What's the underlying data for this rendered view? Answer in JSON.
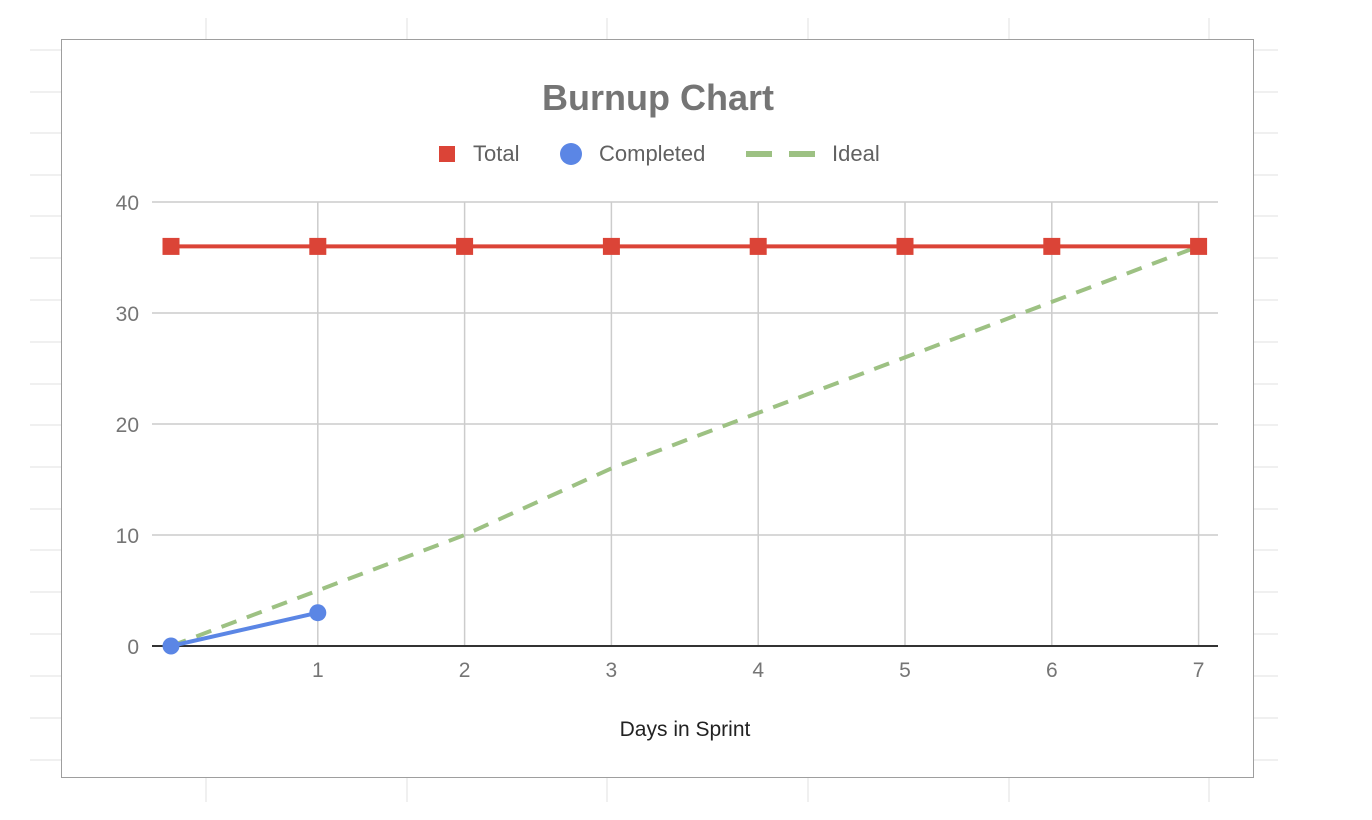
{
  "chart_data": {
    "type": "line",
    "title": "Burnup Chart",
    "xlabel": "Days in Sprint",
    "ylabel": "",
    "ylim": [
      0,
      40
    ],
    "xlim": [
      0,
      7
    ],
    "y_ticks": [
      0,
      10,
      20,
      30,
      40
    ],
    "x_ticks": [
      1,
      2,
      3,
      4,
      5,
      6,
      7
    ],
    "grid": true,
    "legend_position": "top",
    "series": [
      {
        "name": "Total",
        "color": "#db4437",
        "marker": "square",
        "style": "solid",
        "x": [
          0,
          1,
          2,
          3,
          4,
          5,
          6,
          7
        ],
        "y": [
          36,
          36,
          36,
          36,
          36,
          36,
          36,
          36
        ]
      },
      {
        "name": "Completed",
        "color": "#5b86e5",
        "marker": "circle",
        "style": "solid",
        "x": [
          0,
          1
        ],
        "y": [
          0,
          3
        ]
      },
      {
        "name": "Ideal",
        "color": "#9dc183",
        "marker": "none",
        "style": "dashed",
        "x": [
          0,
          1,
          2,
          3,
          4,
          5,
          6,
          7
        ],
        "y": [
          0,
          5,
          10,
          16,
          21,
          26,
          31,
          36
        ]
      }
    ]
  }
}
